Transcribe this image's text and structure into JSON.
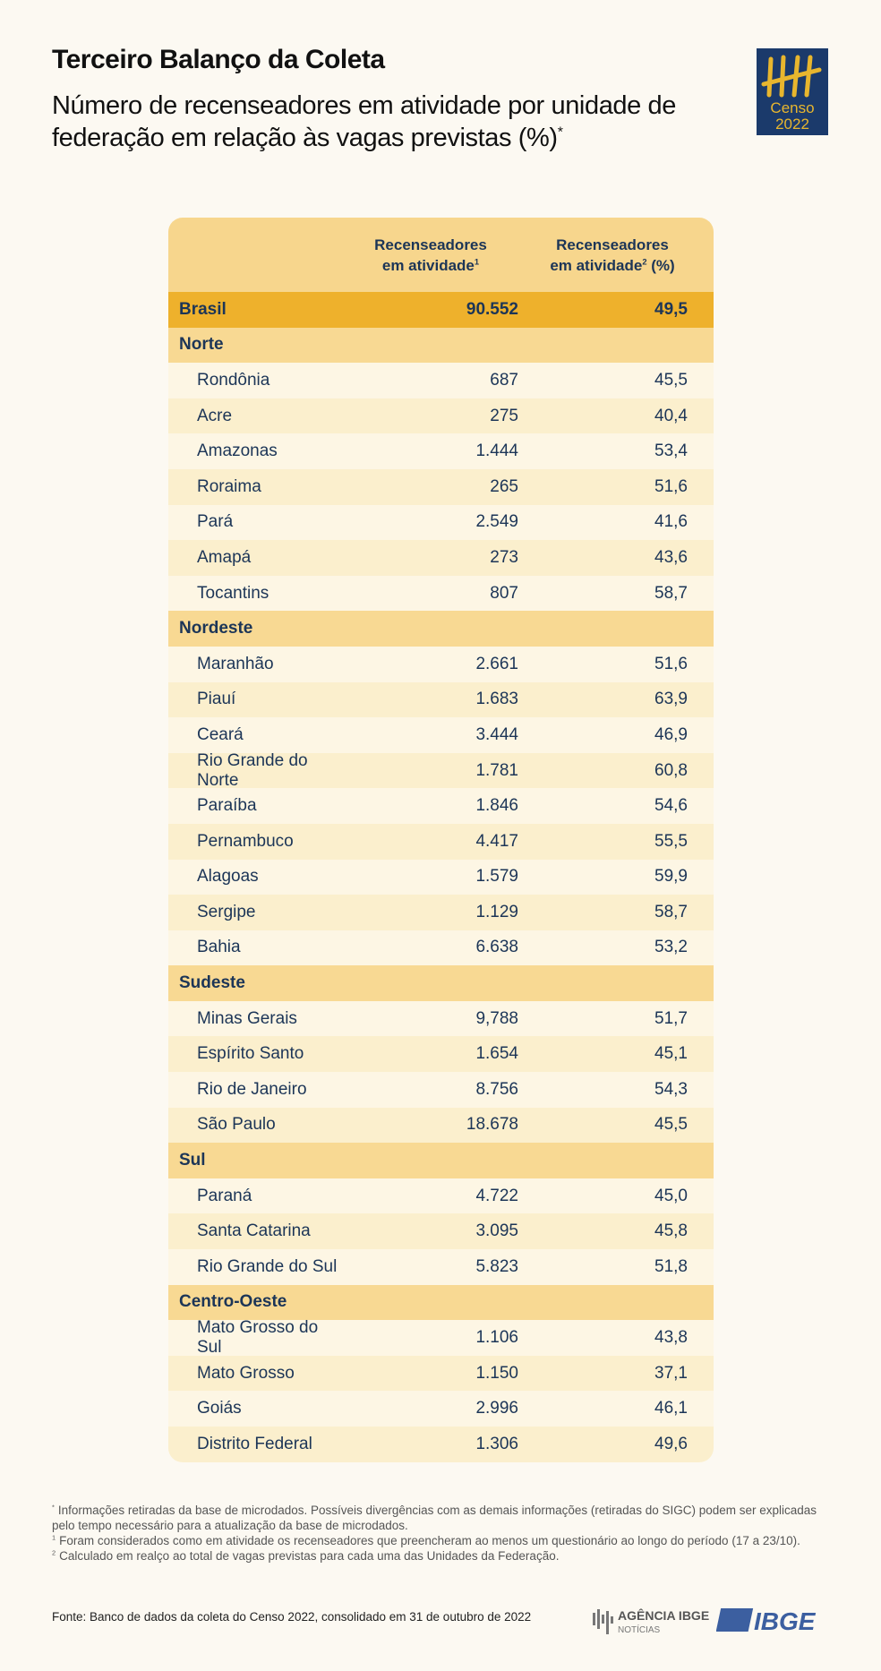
{
  "header": {
    "title": "Terceiro Balanço da Coleta",
    "subtitle": "Número de recenseadores em atividade por unidade de federação em relação às vagas previstas (%)",
    "subtitle_sup": "*",
    "logo": {
      "line1": "Censo",
      "line2": "2022"
    }
  },
  "table": {
    "columns": [
      {
        "line1": "Recenseadores",
        "line2": "em atividade",
        "sup": "1"
      },
      {
        "line1": "Recenseadores",
        "line2": "em atividade",
        "sup": "2",
        "suffix": " (%)"
      }
    ],
    "total": [
      "Brasil",
      "90.552",
      "49,5"
    ],
    "regions": [
      {
        "name": "Norte",
        "rows": [
          [
            "Rondônia",
            "687",
            "45,5"
          ],
          [
            "Acre",
            "275",
            "40,4"
          ],
          [
            "Amazonas",
            "1.444",
            "53,4"
          ],
          [
            "Roraima",
            "265",
            "51,6"
          ],
          [
            "Pará",
            "2.549",
            "41,6"
          ],
          [
            "Amapá",
            "273",
            "43,6"
          ],
          [
            "Tocantins",
            "807",
            "58,7"
          ]
        ]
      },
      {
        "name": "Nordeste",
        "rows": [
          [
            "Maranhão",
            "2.661",
            "51,6"
          ],
          [
            "Piauí",
            "1.683",
            "63,9"
          ],
          [
            "Ceará",
            "3.444",
            "46,9"
          ],
          [
            "Rio Grande do Norte",
            "1.781",
            "60,8"
          ],
          [
            "Paraíba",
            "1.846",
            "54,6"
          ],
          [
            "Pernambuco",
            "4.417",
            "55,5"
          ],
          [
            "Alagoas",
            "1.579",
            "59,9"
          ],
          [
            "Sergipe",
            "1.129",
            "58,7"
          ],
          [
            "Bahia",
            "6.638",
            "53,2"
          ]
        ]
      },
      {
        "name": "Sudeste",
        "rows": [
          [
            "Minas Gerais",
            "9,788",
            "51,7"
          ],
          [
            "Espírito Santo",
            "1.654",
            "45,1"
          ],
          [
            "Rio de Janeiro",
            "8.756",
            "54,3"
          ],
          [
            "São Paulo",
            "18.678",
            "45,5"
          ]
        ]
      },
      {
        "name": "Sul",
        "rows": [
          [
            "Paraná",
            "4.722",
            "45,0"
          ],
          [
            "Santa Catarina",
            "3.095",
            "45,8"
          ],
          [
            "Rio Grande do Sul",
            "5.823",
            "51,8"
          ]
        ]
      },
      {
        "name": "Centro-Oeste",
        "rows": [
          [
            "Mato Grosso do Sul",
            "1.106",
            "43,8"
          ],
          [
            "Mato Grosso",
            "1.150",
            "37,1"
          ],
          [
            "Goiás",
            "2.996",
            "46,1"
          ],
          [
            "Distrito Federal",
            "1.306",
            "49,6"
          ]
        ]
      }
    ]
  },
  "notes": [
    {
      "mark": "*",
      "text": "Informações retiradas da base de microdados. Possíveis divergências com as demais informações (retiradas do SIGC) podem ser explicadas pelo tempo necessário para a atualização da base de microdados."
    },
    {
      "mark": "1",
      "text": "Foram considerados como em atividade os recenseadores que preencheram ao menos um questionário ao longo do período (17 a 23/10)."
    },
    {
      "mark": "2",
      "text": "Calculado em realço ao total de vagas previstas para cada uma das Unidades da Federação."
    }
  ],
  "footer": {
    "source": "Fonte: Banco de dados da coleta do Censo 2022, consolidado em 31 de outubro de 2022",
    "agency": "AGÊNCIA IBGE",
    "agency_sub": "NOTÍCIAS",
    "ibge": "IBGE"
  }
}
